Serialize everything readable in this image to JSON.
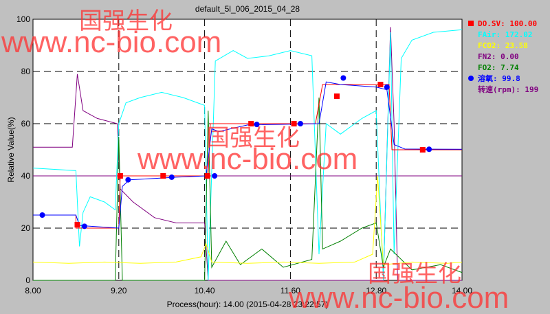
{
  "chart_data": {
    "type": "line",
    "title": "default_5l_006_2015_04_28",
    "xlabel": "Process(hour): 14.00 (2015-04-28 23:22:57)",
    "ylabel": "Relative Value(%)",
    "xlim": [
      8,
      14
    ],
    "ylim": [
      0,
      100
    ],
    "xticks": [
      "8.00",
      "9.20",
      "10.40",
      "11.60",
      "12.80",
      "14.00"
    ],
    "xtick_values": [
      8,
      9.2,
      10.4,
      11.6,
      12.8,
      14
    ],
    "yticks": [
      "0",
      "20",
      "40",
      "60",
      "80",
      "100"
    ],
    "grid": true,
    "legend_position": "right",
    "series": [
      {
        "name": "DO.SV",
        "legend": "DO.SV: 100.00",
        "color": "#ff0000",
        "marker": "square",
        "points": [
          [
            8,
            25
          ],
          [
            8.6,
            25
          ],
          [
            8.6,
            20
          ],
          [
            9.2,
            20
          ],
          [
            9.22,
            40
          ],
          [
            10.45,
            40
          ],
          [
            10.48,
            60
          ],
          [
            11.95,
            60
          ],
          [
            12.05,
            75
          ],
          [
            12.98,
            75
          ],
          [
            13.02,
            50
          ],
          [
            14,
            50
          ]
        ],
        "markers": [
          [
            8.62,
            21.3
          ],
          [
            9.22,
            40
          ],
          [
            9.82,
            40
          ],
          [
            10.44,
            40
          ],
          [
            11.05,
            60
          ],
          [
            11.65,
            60
          ],
          [
            12.25,
            70.5
          ],
          [
            12.86,
            75
          ],
          [
            13.45,
            50
          ]
        ]
      },
      {
        "name": "FAir",
        "legend": "FAir: 172.02",
        "color": "#00ffff",
        "points": [
          [
            8,
            43
          ],
          [
            8.6,
            42
          ],
          [
            8.65,
            13
          ],
          [
            8.7,
            26
          ],
          [
            8.8,
            32
          ],
          [
            9.0,
            30
          ],
          [
            9.15,
            27
          ],
          [
            9.2,
            60
          ],
          [
            9.3,
            68
          ],
          [
            9.5,
            70
          ],
          [
            9.8,
            72
          ],
          [
            10.1,
            70
          ],
          [
            10.4,
            67
          ],
          [
            10.45,
            0
          ],
          [
            10.55,
            84
          ],
          [
            10.8,
            88
          ],
          [
            11.0,
            85
          ],
          [
            11.3,
            86
          ],
          [
            11.6,
            88
          ],
          [
            11.9,
            86
          ],
          [
            12.0,
            10
          ],
          [
            12.1,
            60
          ],
          [
            12.3,
            56
          ],
          [
            12.5,
            60
          ],
          [
            12.6,
            62
          ],
          [
            12.8,
            65
          ],
          [
            12.9,
            0
          ],
          [
            13.0,
            95
          ],
          [
            13.05,
            10
          ],
          [
            13.15,
            85
          ],
          [
            13.3,
            92
          ],
          [
            13.6,
            95
          ],
          [
            14,
            96
          ]
        ]
      },
      {
        "name": "FCO2",
        "legend": "FCO2: 23.58",
        "color": "#ffff00",
        "points": [
          [
            8,
            7
          ],
          [
            8.5,
            6.5
          ],
          [
            9,
            7
          ],
          [
            9.5,
            6.5
          ],
          [
            10,
            7
          ],
          [
            10.35,
            9
          ],
          [
            10.42,
            14
          ],
          [
            10.5,
            7
          ],
          [
            11,
            6.5
          ],
          [
            11.5,
            7
          ],
          [
            12,
            6.5
          ],
          [
            12.5,
            7
          ],
          [
            12.75,
            10
          ],
          [
            12.82,
            40
          ],
          [
            12.9,
            6
          ],
          [
            13.3,
            7
          ],
          [
            13.8,
            6.5
          ],
          [
            14,
            7
          ]
        ]
      },
      {
        "name": "FN2",
        "legend": "FN2: 0.00",
        "color": "#800080",
        "points": [
          [
            8,
            51
          ],
          [
            8.55,
            51
          ],
          [
            8.62,
            79
          ],
          [
            8.7,
            65
          ],
          [
            8.9,
            62
          ],
          [
            9.18,
            60
          ],
          [
            9.22,
            35
          ],
          [
            9.4,
            30
          ],
          [
            9.7,
            24
          ],
          [
            10.0,
            22
          ],
          [
            10.4,
            22
          ],
          [
            10.45,
            0
          ],
          [
            12.9,
            0
          ],
          [
            13.0,
            97
          ],
          [
            13.05,
            60
          ],
          [
            13.1,
            0
          ],
          [
            14,
            0
          ]
        ]
      },
      {
        "name": "FO2",
        "legend": "FO2: 7.74",
        "color": "#008000",
        "points": [
          [
            8,
            0
          ],
          [
            9.15,
            0
          ],
          [
            9.2,
            55
          ],
          [
            9.25,
            0
          ],
          [
            10.4,
            0
          ],
          [
            10.45,
            65
          ],
          [
            10.5,
            5
          ],
          [
            10.7,
            15
          ],
          [
            10.9,
            6
          ],
          [
            11.2,
            12
          ],
          [
            11.5,
            5
          ],
          [
            11.9,
            8
          ],
          [
            12.0,
            70
          ],
          [
            12.05,
            12
          ],
          [
            12.3,
            15
          ],
          [
            12.6,
            20
          ],
          [
            12.8,
            22
          ],
          [
            12.9,
            5
          ],
          [
            13.0,
            12
          ],
          [
            13.3,
            4
          ],
          [
            13.7,
            6
          ],
          [
            14,
            3
          ]
        ]
      },
      {
        "name": "溶氧",
        "legend": "溶氧: 99.8",
        "color": "#0000ff",
        "marker": "circle",
        "points": [
          [
            8,
            25
          ],
          [
            8.6,
            25
          ],
          [
            8.65,
            21
          ],
          [
            9.2,
            20
          ],
          [
            9.25,
            36
          ],
          [
            9.35,
            38.5
          ],
          [
            10.0,
            39.5
          ],
          [
            10.42,
            40
          ],
          [
            10.5,
            58
          ],
          [
            10.6,
            57
          ],
          [
            11.0,
            59.5
          ],
          [
            12.0,
            60
          ],
          [
            12.1,
            76
          ],
          [
            12.3,
            75
          ],
          [
            12.8,
            74
          ],
          [
            12.95,
            73
          ],
          [
            13.05,
            52
          ],
          [
            13.2,
            50.3
          ],
          [
            14,
            50.2
          ]
        ],
        "markers": [
          [
            8.13,
            25
          ],
          [
            8.72,
            20.7
          ],
          [
            9.33,
            38.5
          ],
          [
            9.94,
            39.5
          ],
          [
            10.54,
            40
          ],
          [
            11.13,
            59.7
          ],
          [
            11.74,
            60
          ],
          [
            12.34,
            77.5
          ],
          [
            12.95,
            74
          ],
          [
            13.54,
            50.2
          ]
        ]
      },
      {
        "name": "转速(rpm)",
        "legend": "转速(rpm): 199",
        "color": "#800080",
        "points": [
          [
            8,
            40
          ],
          [
            14,
            40
          ]
        ]
      }
    ]
  },
  "watermark": {
    "cn": "国强生化",
    "url": "www.nc-bio.com"
  }
}
